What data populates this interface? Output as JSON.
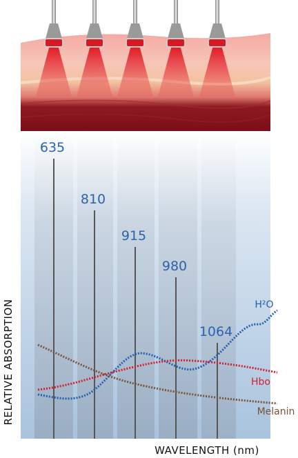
{
  "wavelengths": [
    "635",
    "810",
    "915",
    "980",
    "1064"
  ],
  "curves": [
    {
      "label": "H²O",
      "color": "#1f5fae"
    },
    {
      "label": "Hbo",
      "color": "#d0202e"
    },
    {
      "label": "Melanin",
      "color": "#7a5236"
    }
  ],
  "axes": {
    "y_label": "RELATIVE ABSORPTION",
    "x_label": "WAVELENGTH (nm)"
  }
}
